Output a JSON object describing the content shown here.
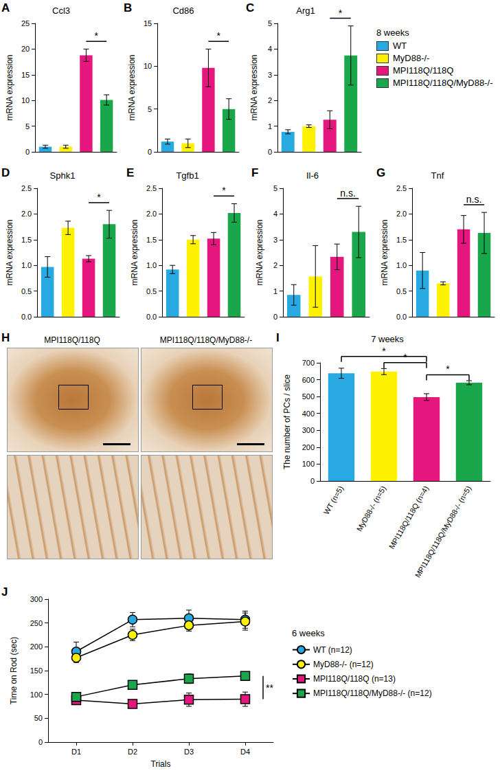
{
  "chart_data": [
    {
      "type": "bar",
      "panel": "A",
      "title": "Ccl3",
      "ylabel": "mRNA expression",
      "legend_title": "8 weeks",
      "legend": "right",
      "categories": [
        "WT",
        "MyD88-/-",
        "MPI118Q/118Q",
        "MPI118Q/118Q/MyD88-/-"
      ],
      "colors": [
        "#29a9e1",
        "#fff200",
        "#e5177e",
        "#1aa64a"
      ],
      "values": [
        1.0,
        1.0,
        18.8,
        10.1
      ],
      "errors": [
        0.3,
        0.3,
        1.2,
        1.0
      ],
      "ylim": [
        0,
        25
      ],
      "yticks": [
        0,
        5,
        10,
        15,
        20,
        25
      ],
      "tick_labels": "y",
      "annotations": [
        {
          "text": "*",
          "between": [
            2,
            3
          ]
        }
      ]
    },
    {
      "type": "bar",
      "panel": "B",
      "title": "Cd86",
      "ylabel": "mRNA expression",
      "categories": [
        "WT",
        "MyD88-/-",
        "MPI118Q/118Q",
        "MPI118Q/118Q/MyD88-/-"
      ],
      "colors": [
        "#29a9e1",
        "#fff200",
        "#e5177e",
        "#1aa64a"
      ],
      "values": [
        1.2,
        1.0,
        9.8,
        5.0
      ],
      "errors": [
        0.3,
        0.5,
        2.2,
        1.2
      ],
      "ylim": [
        0,
        15
      ],
      "yticks": [
        0,
        5,
        10,
        15
      ],
      "tick_labels": "y",
      "annotations": [
        {
          "text": "*",
          "between": [
            2,
            3
          ]
        }
      ]
    },
    {
      "type": "bar",
      "panel": "C",
      "title": "Arg1",
      "ylabel": "mRNA expression",
      "categories": [
        "WT",
        "MyD88-/-",
        "MPI118Q/118Q",
        "MPI118Q/118Q/MyD88-/-"
      ],
      "colors": [
        "#29a9e1",
        "#fff200",
        "#e5177e",
        "#1aa64a"
      ],
      "values": [
        0.78,
        1.0,
        1.25,
        3.75
      ],
      "errors": [
        0.08,
        0.05,
        0.35,
        1.15
      ],
      "ylim": [
        0,
        5
      ],
      "yticks": [
        0,
        1,
        2,
        3,
        4,
        5
      ],
      "tick_labels": "y",
      "annotations": [
        {
          "text": "*",
          "between": [
            2,
            3
          ]
        }
      ]
    },
    {
      "type": "bar",
      "panel": "D",
      "title": "Sphk1",
      "ylabel": "mRNA expression",
      "categories": [
        "WT",
        "MyD88-/-",
        "MPI118Q/118Q",
        "MPI118Q/118Q/MyD88-/-"
      ],
      "colors": [
        "#29a9e1",
        "#fff200",
        "#e5177e",
        "#1aa64a"
      ],
      "values": [
        0.97,
        1.73,
        1.13,
        1.8
      ],
      "errors": [
        0.2,
        0.13,
        0.06,
        0.27
      ],
      "ylim": [
        0,
        2.5
      ],
      "yticks": [
        {
          "value": 0,
          "label": "0.0"
        },
        0.5,
        {
          "value": 1,
          "label": "1.0"
        },
        1.5,
        {
          "value": 2,
          "label": "2.0"
        },
        2.5
      ],
      "tick_labels": "y",
      "annotations": [
        {
          "text": "*",
          "between": [
            2,
            3
          ]
        }
      ]
    },
    {
      "type": "bar",
      "panel": "E",
      "title": "Tgfb1",
      "ylabel": "mRNA expression",
      "categories": [
        "WT",
        "MyD88-/-",
        "MPI118Q/118Q",
        "MPI118Q/118Q/MyD88-/-"
      ],
      "colors": [
        "#29a9e1",
        "#fff200",
        "#e5177e",
        "#1aa64a"
      ],
      "values": [
        0.92,
        1.5,
        1.52,
        2.02
      ],
      "errors": [
        0.08,
        0.08,
        0.12,
        0.18
      ],
      "ylim": [
        0,
        2.5
      ],
      "yticks": [
        {
          "value": 0,
          "label": "0.0"
        },
        0.5,
        {
          "value": 1,
          "label": "1.0"
        },
        1.5,
        {
          "value": 2,
          "label": "2.0"
        },
        2.5
      ],
      "tick_labels": "y",
      "annotations": [
        {
          "text": "*",
          "between": [
            2,
            3
          ]
        }
      ]
    },
    {
      "type": "bar",
      "panel": "F",
      "title": "Il-6",
      "ylabel": "mRNA expression",
      "categories": [
        "WT",
        "MyD88-/-",
        "MPI118Q/118Q",
        "MPI118Q/118Q/MyD88-/-"
      ],
      "colors": [
        "#29a9e1",
        "#fff200",
        "#e5177e",
        "#1aa64a"
      ],
      "values": [
        0.85,
        1.57,
        2.33,
        3.3
      ],
      "errors": [
        0.4,
        1.2,
        0.5,
        1.0
      ],
      "ylim": [
        0,
        5
      ],
      "yticks": [
        0,
        1,
        2,
        3,
        4,
        5
      ],
      "tick_labels": "y",
      "annotations": [
        {
          "text": "n.s.",
          "between": [
            2,
            3
          ]
        }
      ]
    },
    {
      "type": "bar",
      "panel": "G",
      "title": "Tnf",
      "ylabel": "mRNA expression",
      "categories": [
        "WT",
        "MyD88-/-",
        "MPI118Q/118Q",
        "MPI118Q/118Q/MyD88-/-"
      ],
      "colors": [
        "#29a9e1",
        "#fff200",
        "#e5177e",
        "#1aa64a"
      ],
      "values": [
        0.9,
        0.65,
        1.7,
        1.63
      ],
      "errors": [
        0.35,
        0.03,
        0.27,
        0.4
      ],
      "ylim": [
        0,
        2.5
      ],
      "yticks": [
        {
          "value": 0,
          "label": "0.0"
        },
        0.5,
        {
          "value": 1,
          "label": "1.0"
        },
        1.5,
        {
          "value": 2,
          "label": "2.0"
        },
        2.5
      ],
      "tick_labels": "y",
      "annotations": [
        {
          "text": "n.s.",
          "between": [
            2,
            3
          ]
        }
      ]
    },
    {
      "type": "bar",
      "panel": "I",
      "title": "7 weeks",
      "ylabel": "The number of PCs / slice",
      "categories": [
        "WT (n=5)",
        "MyD88-/- (n=5)",
        "MPI118Q/118Q (n=4)",
        "MPI118Q/118Q/MyD88-/- (n=5)"
      ],
      "colors": [
        "#29a9e1",
        "#fff200",
        "#e5177e",
        "#1aa64a"
      ],
      "values": [
        638,
        648,
        497,
        582
      ],
      "errors": [
        30,
        18,
        20,
        12
      ],
      "ylim": [
        0,
        700
      ],
      "yticks": [
        0,
        100,
        200,
        300,
        400,
        500,
        600,
        700
      ],
      "annotations": [
        {
          "text": "*",
          "between": [
            0,
            2
          ]
        },
        {
          "text": "*",
          "between": [
            1,
            2
          ]
        },
        {
          "text": "*",
          "between": [
            2,
            3
          ]
        }
      ]
    },
    {
      "type": "line",
      "panel": "J",
      "legend_title": "6 weeks",
      "legend": "right",
      "xlabel": "Trials",
      "ylabel": "Time on Rod (sec)",
      "categories": [
        "D1",
        "D2",
        "D3",
        "D4"
      ],
      "ylim": [
        0,
        300
      ],
      "yticks": [
        0,
        50,
        100,
        150,
        200,
        250,
        300
      ],
      "series": [
        {
          "name": "WT (n=12)",
          "color": "#29a9e1",
          "marker": "circle",
          "values": [
            190,
            257,
            260,
            257
          ],
          "errors": [
            20,
            15,
            17,
            18
          ]
        },
        {
          "name": "MyD88-/- (n=12)",
          "color": "#fff200",
          "marker": "circle",
          "values": [
            177,
            225,
            245,
            253
          ],
          "errors": [
            10,
            12,
            12,
            18
          ]
        },
        {
          "name": "MPI118Q/118Q (n=13)",
          "color": "#e5177e",
          "marker": "square",
          "values": [
            88,
            80,
            89,
            90
          ],
          "errors": [
            5,
            8,
            14,
            15
          ]
        },
        {
          "name": "MPI118Q/118Q/MyD88-/- (n=12)",
          "color": "#1aa64a",
          "marker": "square",
          "values": [
            95,
            120,
            133,
            139
          ],
          "errors": [
            8,
            6,
            10,
            7
          ]
        }
      ],
      "annotations": [
        {
          "text": "**",
          "between_series": [
            2,
            3
          ]
        }
      ]
    }
  ],
  "image_panel": {
    "panel": "H",
    "labels": [
      "MPI118Q/118Q",
      "MPI118Q/118Q/MyD88-/-"
    ]
  }
}
